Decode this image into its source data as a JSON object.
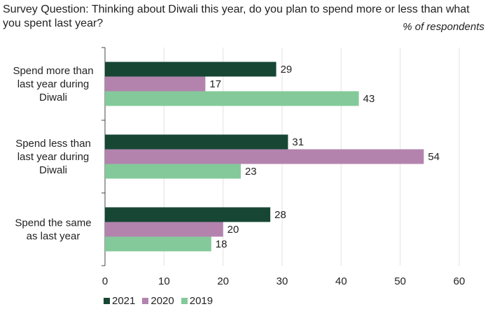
{
  "chart_data": {
    "type": "bar",
    "orientation": "horizontal",
    "title": "Survey Question: Thinking about Diwali this year, do you plan to spend more or less than what you spent last year?",
    "unit_label": "% of respondents",
    "categories": [
      [
        "Spend more than",
        "last year during",
        "Diwali"
      ],
      [
        "Spend less than",
        "last year during",
        "Diwali"
      ],
      [
        "Spend the same",
        "as last year"
      ]
    ],
    "series": [
      {
        "name": "2021",
        "color": "#174734",
        "values": [
          29,
          31,
          28
        ]
      },
      {
        "name": "2020",
        "color": "#B383AE",
        "values": [
          17,
          54,
          20
        ]
      },
      {
        "name": "2019",
        "color": "#84C99A",
        "values": [
          43,
          23,
          18
        ]
      }
    ],
    "xlim": [
      0,
      60
    ],
    "xticks": [
      "0",
      "10",
      "20",
      "30",
      "40",
      "50",
      "60"
    ],
    "grid": true,
    "legend": "bottom-left"
  }
}
